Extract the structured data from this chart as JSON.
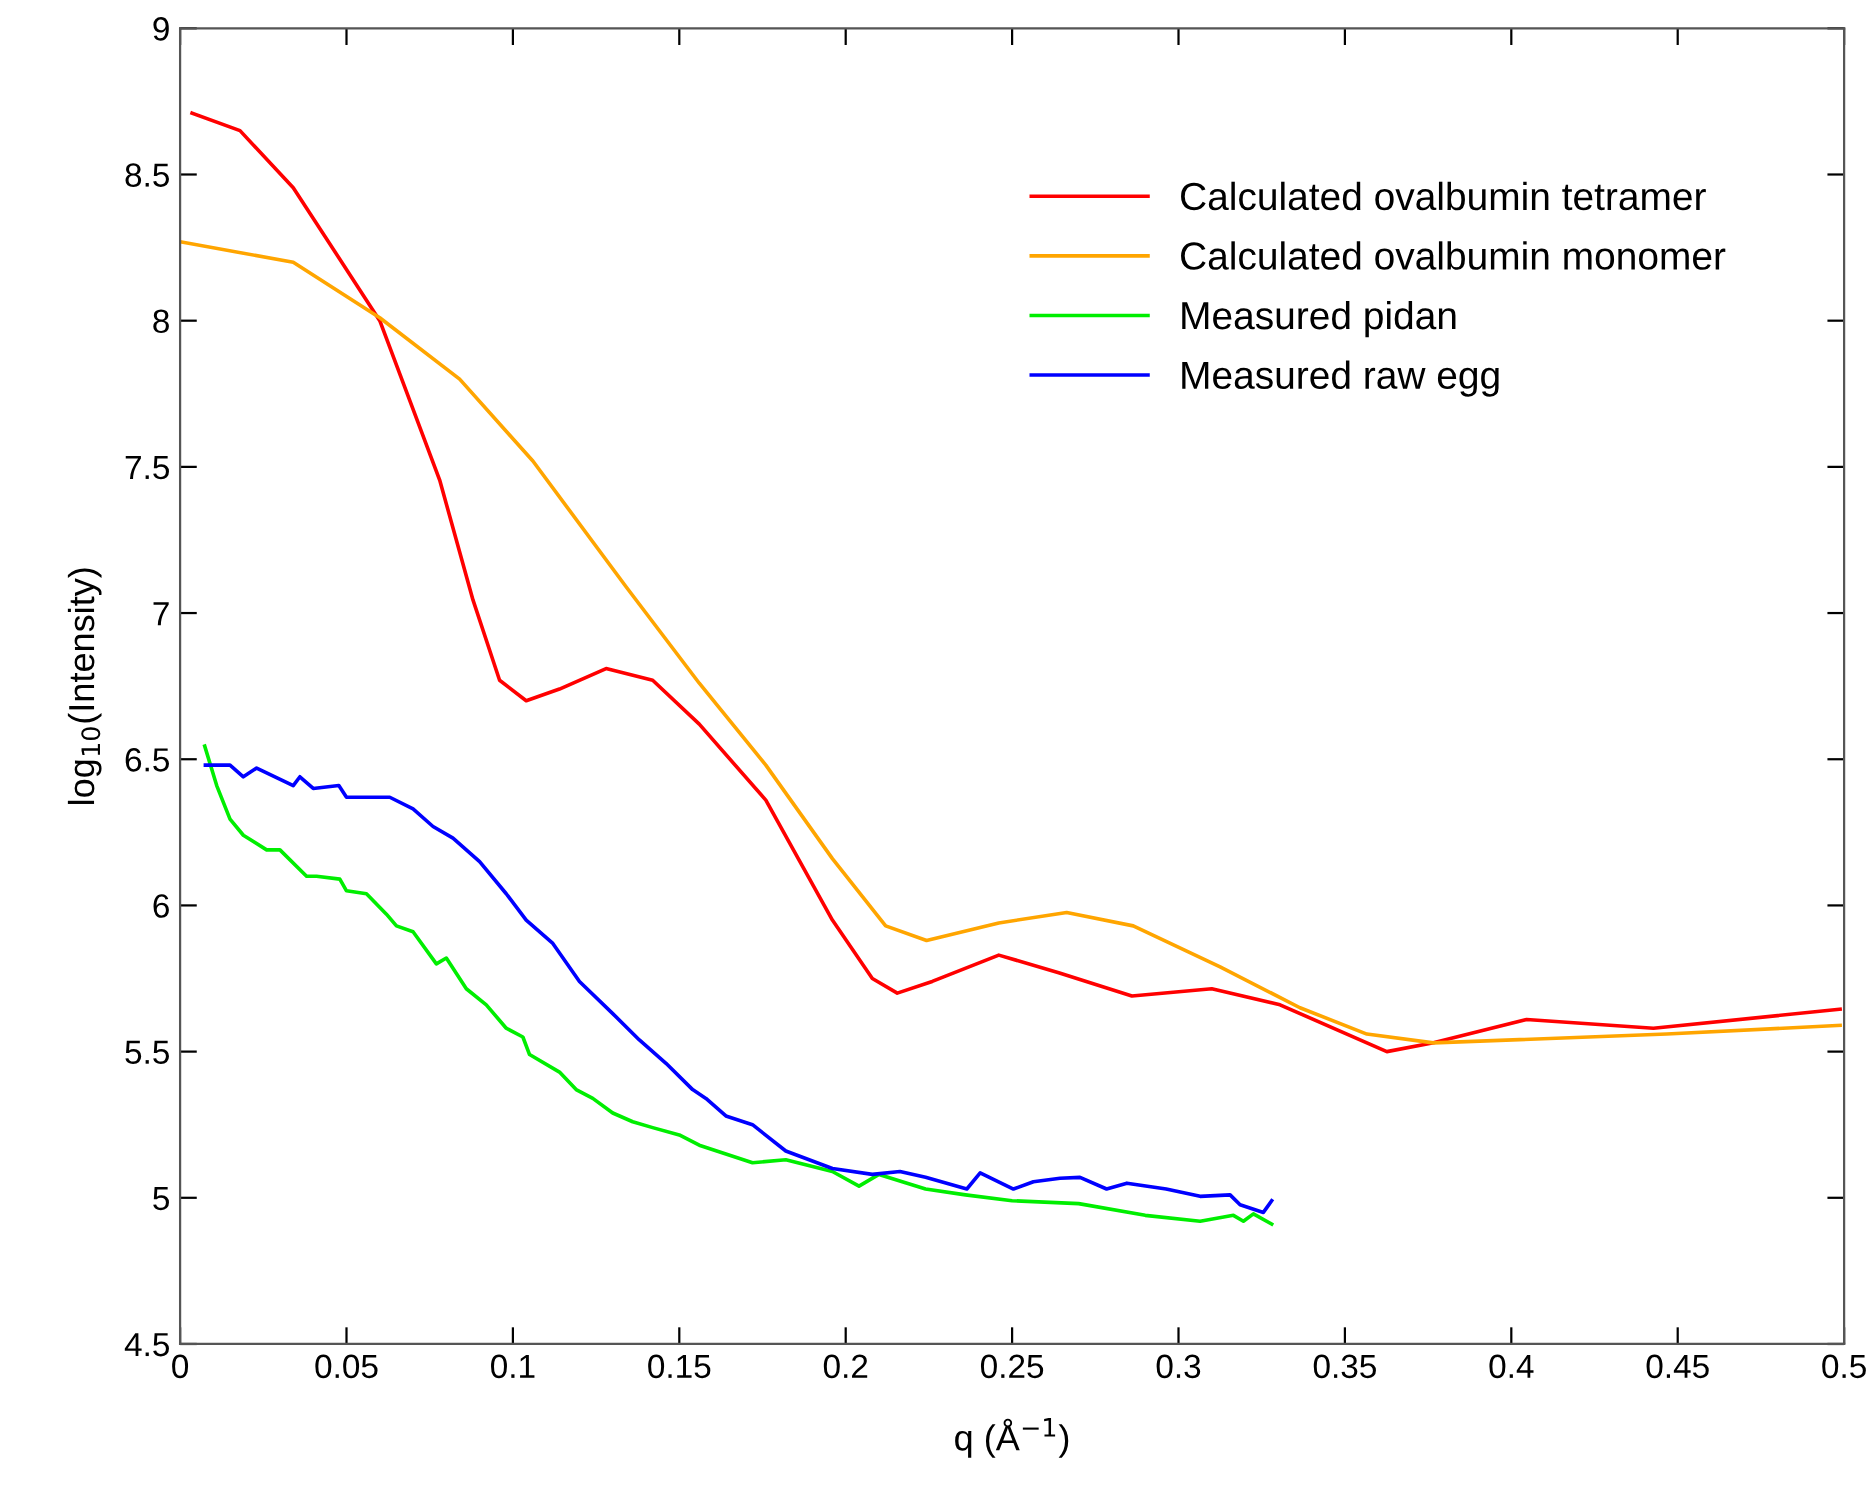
{
  "chart_data": {
    "type": "line",
    "xlabel": "q (Å$^{−1}$)",
    "ylabel": "log$_{10}$(Intensity)",
    "xlim": [
      0,
      0.5
    ],
    "ylim": [
      4.5,
      9
    ],
    "xticks": [
      0,
      0.05,
      0.1,
      0.15,
      0.2,
      0.25,
      0.3,
      0.35,
      0.4,
      0.45,
      0.5
    ],
    "yticks": [
      4.5,
      5,
      5.5,
      6,
      6.5,
      7,
      7.5,
      8,
      8.5,
      9
    ],
    "grid": false,
    "legend": "top right",
    "marker": "none",
    "line_style": "solid",
    "series": [
      {
        "name": "Calculated ovalbumin tetramer",
        "color": "#ff0000",
        "x": [
          0.0036,
          0.018,
          0.034,
          0.06,
          0.078,
          0.088,
          0.096,
          0.104,
          0.114,
          0.128,
          0.142,
          0.156,
          0.176,
          0.196,
          0.208,
          0.2155,
          0.226,
          0.246,
          0.264,
          0.286,
          0.31,
          0.3305,
          0.3626,
          0.3766,
          0.4046,
          0.4427,
          0.4988
        ],
        "values": [
          8.71,
          8.65,
          8.455,
          8.0,
          7.455,
          7.045,
          6.77,
          6.7,
          6.74,
          6.81,
          6.77,
          6.62,
          6.36,
          5.95,
          5.75,
          5.7,
          5.74,
          5.83,
          5.77,
          5.69,
          5.715,
          5.66,
          5.5,
          5.53,
          5.61,
          5.58,
          5.645
        ]
      },
      {
        "name": "Calculated ovalbumin monomer",
        "color": "#ffa500",
        "x": [
          0.0,
          0.034,
          0.06,
          0.084,
          0.106,
          0.134,
          0.156,
          0.176,
          0.196,
          0.212,
          0.2243,
          0.246,
          0.2664,
          0.2864,
          0.3125,
          0.3365,
          0.3566,
          0.3766,
          0.4467,
          0.4988
        ],
        "values": [
          8.27,
          8.2,
          8.01,
          7.8,
          7.52,
          7.09,
          6.76,
          6.48,
          6.16,
          5.93,
          5.88,
          5.94,
          5.976,
          5.93,
          5.79,
          5.65,
          5.56,
          5.53,
          5.56,
          5.59
        ]
      },
      {
        "name": "Measured pidan",
        "color": "#00ee00",
        "x": [
          0.0074,
          0.011,
          0.015,
          0.019,
          0.026,
          0.03,
          0.038,
          0.041,
          0.048,
          0.05,
          0.056,
          0.062,
          0.065,
          0.07,
          0.077,
          0.08,
          0.086,
          0.092,
          0.098,
          0.103,
          0.105,
          0.114,
          0.119,
          0.124,
          0.13,
          0.136,
          0.142,
          0.15,
          0.156,
          0.164,
          0.172,
          0.182,
          0.196,
          0.204,
          0.21,
          0.224,
          0.236,
          0.25,
          0.27,
          0.29,
          0.3065,
          0.3165,
          0.3195,
          0.3225,
          0.328
        ],
        "values": [
          6.545,
          6.41,
          6.295,
          6.24,
          6.19,
          6.19,
          6.1,
          6.1,
          6.09,
          6.05,
          6.04,
          5.97,
          5.93,
          5.91,
          5.8,
          5.82,
          5.715,
          5.66,
          5.58,
          5.55,
          5.49,
          5.43,
          5.37,
          5.34,
          5.29,
          5.26,
          5.24,
          5.215,
          5.18,
          5.15,
          5.12,
          5.13,
          5.09,
          5.04,
          5.08,
          5.03,
          5.01,
          4.99,
          4.98,
          4.94,
          4.92,
          4.94,
          4.92,
          4.945,
          4.91
        ]
      },
      {
        "name": "Measured raw egg",
        "color": "#0000ff",
        "x": [
          0.0076,
          0.015,
          0.019,
          0.023,
          0.034,
          0.036,
          0.04,
          0.0477,
          0.05,
          0.063,
          0.07,
          0.076,
          0.082,
          0.09,
          0.098,
          0.104,
          0.112,
          0.12,
          0.13,
          0.138,
          0.146,
          0.154,
          0.158,
          0.164,
          0.172,
          0.182,
          0.196,
          0.208,
          0.2163,
          0.224,
          0.2364,
          0.2404,
          0.2504,
          0.2564,
          0.2644,
          0.2704,
          0.2784,
          0.2845,
          0.2963,
          0.3065,
          0.3155,
          0.3185,
          0.3255,
          0.328
        ],
        "values": [
          6.48,
          6.48,
          6.44,
          6.47,
          6.41,
          6.44,
          6.4,
          6.41,
          6.37,
          6.37,
          6.33,
          6.27,
          6.23,
          6.15,
          6.04,
          5.95,
          5.87,
          5.74,
          5.63,
          5.54,
          5.46,
          5.37,
          5.34,
          5.28,
          5.25,
          5.16,
          5.1,
          5.08,
          5.09,
          5.07,
          5.03,
          5.085,
          5.03,
          5.055,
          5.067,
          5.07,
          5.03,
          5.05,
          5.03,
          5.005,
          5.01,
          4.976,
          4.95,
          4.99
        ]
      }
    ]
  }
}
